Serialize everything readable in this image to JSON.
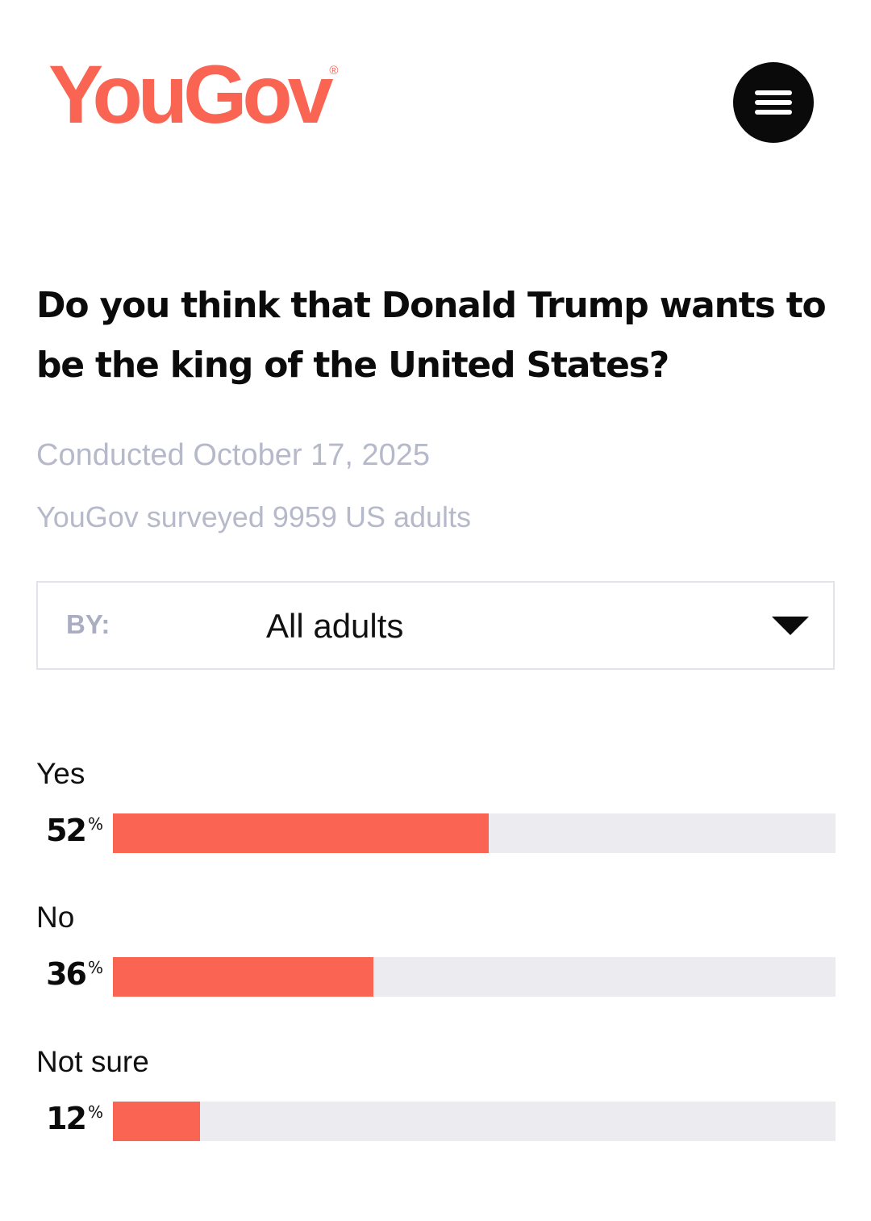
{
  "brand": {
    "name": "YouGov",
    "registered_mark": "®",
    "color": "#fa6453"
  },
  "header": {
    "menu_icon": "hamburger-menu-icon"
  },
  "poll": {
    "question": "Do you think that Donald Trump wants to be the king of the United States?",
    "conducted": "Conducted October 17, 2025",
    "surveyed": "YouGov surveyed 9959 US adults"
  },
  "filter": {
    "label": "BY:",
    "selected": "All adults",
    "icon": "caret-down-icon"
  },
  "results": [
    {
      "label": "Yes",
      "value": 52,
      "value_text": "52",
      "unit": "%"
    },
    {
      "label": "No",
      "value": 36,
      "value_text": "36",
      "unit": "%"
    },
    {
      "label": "Not sure",
      "value": 12,
      "value_text": "12",
      "unit": "%"
    }
  ],
  "colors": {
    "bar_fill": "#fa6453",
    "bar_track": "#ececf0",
    "meta_text": "#b5b9c9"
  }
}
